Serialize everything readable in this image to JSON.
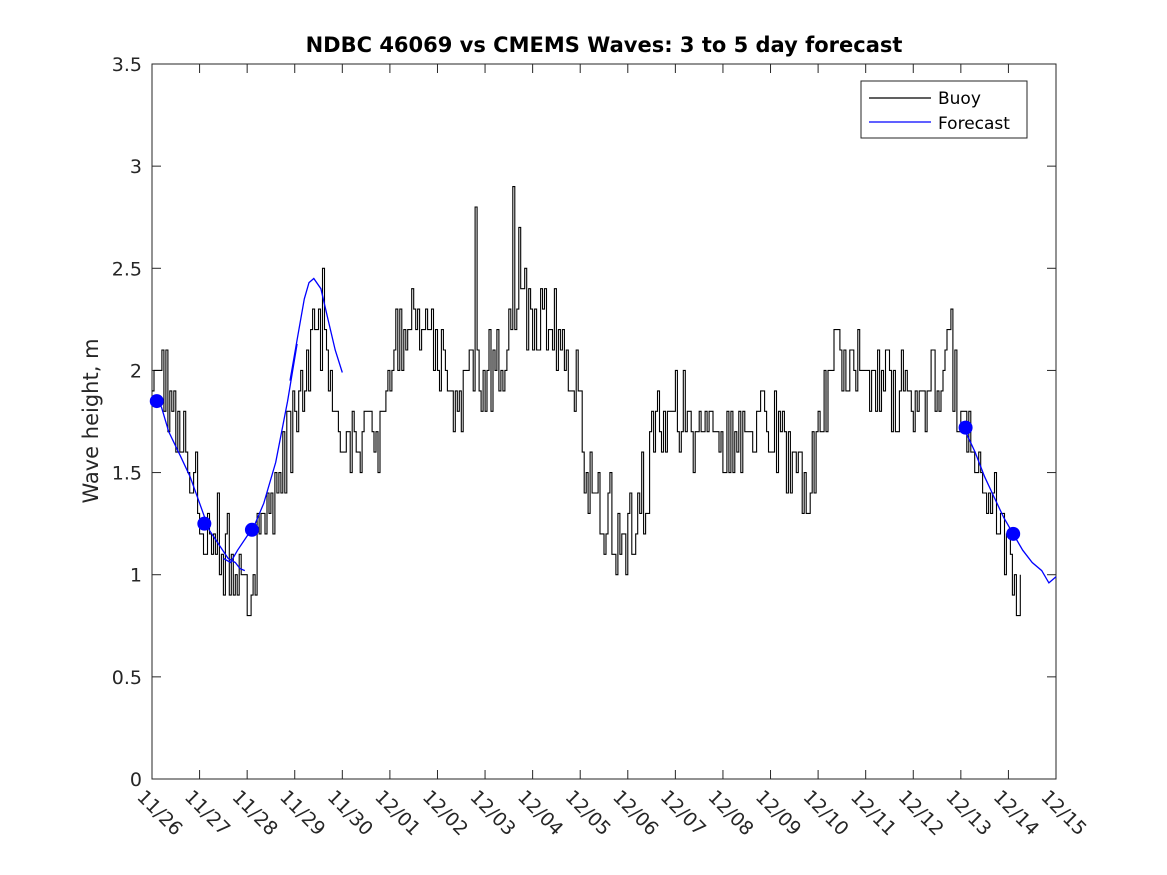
{
  "chart_data": {
    "type": "line",
    "title": "NDBC 46069 vs CMEMS Waves: 3 to 5 day forecast",
    "xlabel": "",
    "ylabel": "Wave height, m",
    "xlim": [
      0,
      19
    ],
    "ylim": [
      0,
      3.5
    ],
    "yticks": [
      0,
      0.5,
      1,
      1.5,
      2,
      2.5,
      3,
      3.5
    ],
    "ytick_labels": [
      "0",
      "0.5",
      "1",
      "1.5",
      "2",
      "2.5",
      "3",
      "3.5"
    ],
    "xticks": [
      0,
      1,
      2,
      3,
      4,
      5,
      6,
      7,
      8,
      9,
      10,
      11,
      12,
      13,
      14,
      15,
      16,
      17,
      18,
      19
    ],
    "xtick_labels": [
      "11/26",
      "11/27",
      "11/28",
      "11/29",
      "11/30",
      "12/01",
      "12/02",
      "12/03",
      "12/04",
      "12/05",
      "12/06",
      "12/07",
      "12/08",
      "12/09",
      "12/10",
      "12/11",
      "12/12",
      "12/13",
      "12/14",
      "12/15"
    ],
    "x_units": "days since 11/26",
    "grid": false,
    "legend_location": "top-right",
    "series": [
      {
        "name": "Buoy",
        "color": "#000000",
        "style": "step-noisy",
        "anchors": [
          [
            0.0,
            2.05
          ],
          [
            0.1,
            1.9
          ],
          [
            0.25,
            1.95
          ],
          [
            0.4,
            1.8
          ],
          [
            0.6,
            1.7
          ],
          [
            0.8,
            1.55
          ],
          [
            1.0,
            1.35
          ],
          [
            1.2,
            1.2
          ],
          [
            1.4,
            1.15
          ],
          [
            1.6,
            1.05
          ],
          [
            1.8,
            0.98
          ],
          [
            2.0,
            0.88
          ],
          [
            2.1,
            1.0
          ],
          [
            2.3,
            1.15
          ],
          [
            2.5,
            1.3
          ],
          [
            2.7,
            1.45
          ],
          [
            2.9,
            1.65
          ],
          [
            3.1,
            1.9
          ],
          [
            3.3,
            2.1
          ],
          [
            3.5,
            2.2
          ],
          [
            3.7,
            2.1
          ],
          [
            3.9,
            1.85
          ],
          [
            4.1,
            1.7
          ],
          [
            4.5,
            1.65
          ],
          [
            4.8,
            1.7
          ],
          [
            5.0,
            2.0
          ],
          [
            5.2,
            2.15
          ],
          [
            5.5,
            2.2
          ],
          [
            5.8,
            2.15
          ],
          [
            6.0,
            2.1
          ],
          [
            6.3,
            1.8
          ],
          [
            6.5,
            1.9
          ],
          [
            6.8,
            2.1
          ],
          [
            7.0,
            1.95
          ],
          [
            7.3,
            2.05
          ],
          [
            7.5,
            2.15
          ],
          [
            7.7,
            2.4
          ],
          [
            7.9,
            2.25
          ],
          [
            8.1,
            2.3
          ],
          [
            8.4,
            2.25
          ],
          [
            8.7,
            2.2
          ],
          [
            8.9,
            1.95
          ],
          [
            9.1,
            1.55
          ],
          [
            9.3,
            1.35
          ],
          [
            9.5,
            1.3
          ],
          [
            9.7,
            1.25
          ],
          [
            9.9,
            1.15
          ],
          [
            10.1,
            1.25
          ],
          [
            10.3,
            1.4
          ],
          [
            10.5,
            1.6
          ],
          [
            10.7,
            1.8
          ],
          [
            11.0,
            1.85
          ],
          [
            11.2,
            1.8
          ],
          [
            11.5,
            1.7
          ],
          [
            11.8,
            1.65
          ],
          [
            12.0,
            1.6
          ],
          [
            12.3,
            1.65
          ],
          [
            12.6,
            1.75
          ],
          [
            12.9,
            1.7
          ],
          [
            13.2,
            1.65
          ],
          [
            13.4,
            1.6
          ],
          [
            13.6,
            1.5
          ],
          [
            13.8,
            1.45
          ],
          [
            14.0,
            1.6
          ],
          [
            14.2,
            1.9
          ],
          [
            14.4,
            2.05
          ],
          [
            14.6,
            2.05
          ],
          [
            14.9,
            2.0
          ],
          [
            15.2,
            1.95
          ],
          [
            15.5,
            1.9
          ],
          [
            15.8,
            1.85
          ],
          [
            16.1,
            1.9
          ],
          [
            16.4,
            1.95
          ],
          [
            16.7,
            2.05
          ],
          [
            16.9,
            1.95
          ],
          [
            17.1,
            1.6
          ],
          [
            17.3,
            1.55
          ],
          [
            17.5,
            1.4
          ],
          [
            17.7,
            1.3
          ],
          [
            17.9,
            1.2
          ],
          [
            18.1,
            1.05
          ],
          [
            18.25,
            1.0
          ]
        ],
        "spikes": [
          [
            0.2,
            2.1
          ],
          [
            2.0,
            0.8
          ],
          [
            3.6,
            2.5
          ],
          [
            6.8,
            2.8
          ],
          [
            7.6,
            2.9
          ],
          [
            7.7,
            2.7
          ],
          [
            9.7,
            1.1
          ],
          [
            13.8,
            1.3
          ],
          [
            16.8,
            2.3
          ],
          [
            18.1,
            0.9
          ]
        ]
      },
      {
        "name": "Forecast",
        "color": "#0000ff",
        "style": "line",
        "segments": [
          [
            [
              0.1,
              1.85
            ],
            [
              0.2,
              1.82
            ],
            [
              0.35,
              1.7
            ],
            [
              0.6,
              1.58
            ],
            [
              0.8,
              1.48
            ],
            [
              1.0,
              1.35
            ],
            [
              1.2,
              1.22
            ],
            [
              1.4,
              1.15
            ],
            [
              1.6,
              1.08
            ],
            [
              1.75,
              1.06
            ],
            [
              1.85,
              1.03
            ],
            [
              1.95,
              1.02
            ]
          ],
          [
            [
              1.5,
              1.08
            ],
            [
              1.65,
              1.06
            ],
            [
              1.8,
              1.12
            ],
            [
              2.0,
              1.19
            ],
            [
              2.15,
              1.24
            ],
            [
              2.35,
              1.35
            ],
            [
              2.6,
              1.55
            ],
            [
              2.85,
              1.85
            ],
            [
              3.05,
              2.13
            ]
          ],
          [
            [
              2.9,
              1.95
            ],
            [
              3.05,
              2.15
            ],
            [
              3.2,
              2.35
            ],
            [
              3.3,
              2.43
            ],
            [
              3.4,
              2.45
            ],
            [
              3.55,
              2.4
            ],
            [
              3.7,
              2.25
            ],
            [
              3.85,
              2.1
            ],
            [
              4.0,
              1.99
            ]
          ],
          [
            [
              17.0,
              1.75
            ],
            [
              17.1,
              1.7
            ],
            [
              17.3,
              1.6
            ],
            [
              17.5,
              1.48
            ],
            [
              17.7,
              1.38
            ],
            [
              17.9,
              1.28
            ],
            [
              18.1,
              1.2
            ],
            [
              18.3,
              1.12
            ],
            [
              18.5,
              1.06
            ],
            [
              18.7,
              1.02
            ],
            [
              18.85,
              0.96
            ],
            [
              19.0,
              0.99
            ]
          ]
        ],
        "markers": [
          [
            0.1,
            1.85
          ],
          [
            1.1,
            1.25
          ],
          [
            2.1,
            1.22
          ],
          [
            17.1,
            1.72
          ],
          [
            18.1,
            1.2
          ]
        ]
      }
    ]
  }
}
